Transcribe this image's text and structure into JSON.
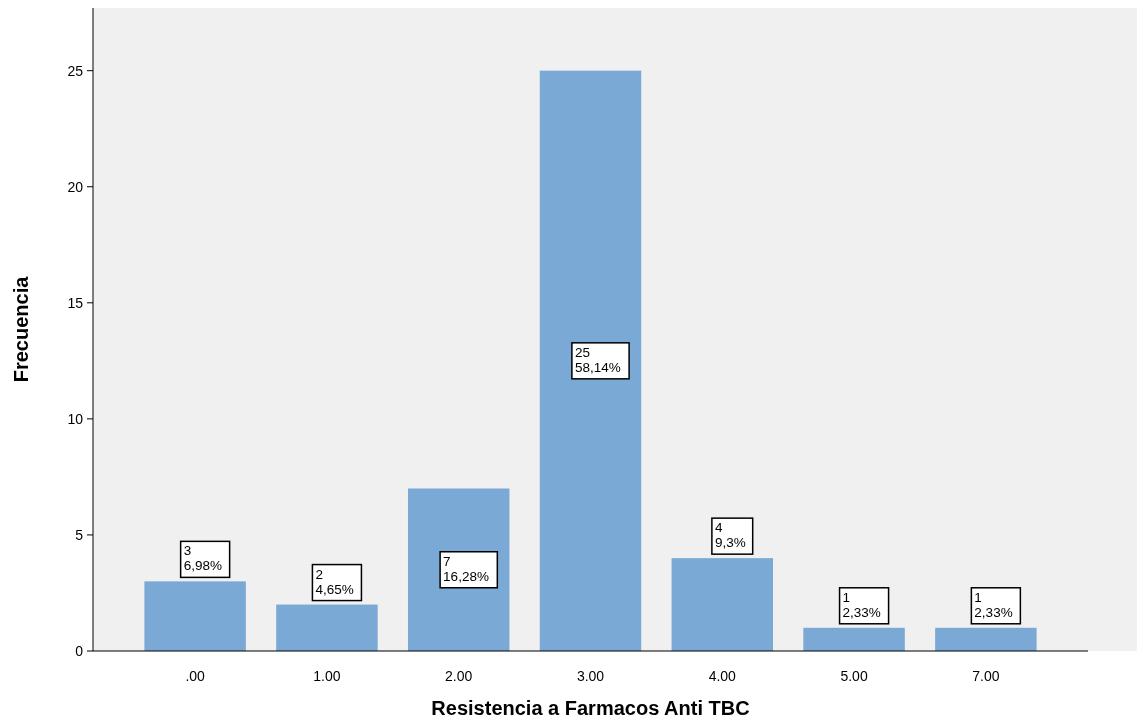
{
  "chart_data": {
    "type": "bar",
    "xlabel": "Resistencia a Farmacos Anti TBC",
    "ylabel": "Frecuencia",
    "categories": [
      ".00",
      "1.00",
      "2.00",
      "3.00",
      "4.00",
      "5.00",
      "7.00"
    ],
    "values": [
      3,
      2,
      7,
      25,
      4,
      1,
      1
    ],
    "value_labels": [
      "3\n6,98%",
      "2\n4,65%",
      "7\n16,28%",
      "25\n58,14%",
      "4\n9,3%",
      "1\n2,33%",
      "1\n2,33%"
    ],
    "color": "#7ba9d6",
    "ylim": [
      0,
      27.7
    ],
    "yticks": [
      0,
      5,
      10,
      15,
      20,
      25
    ],
    "grid": false
  }
}
